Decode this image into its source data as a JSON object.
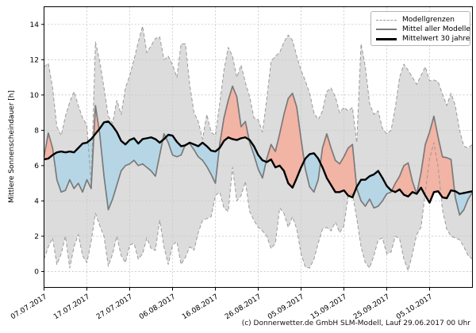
{
  "footer": "(c) Donnerwetter.de GmbH SLM-Modell, Lauf 29.06.2017 00 Uhr",
  "chart_data": {
    "type": "line",
    "title": "",
    "xlabel": "",
    "ylabel": "Mittlere Sonnenscheindauer [h]",
    "x": {
      "unit": "day",
      "start_label": "07.07.2017",
      "end_label": "15.10.2017",
      "n_points": 101,
      "tick_positions": [
        0,
        10,
        20,
        30,
        40,
        50,
        60,
        70,
        80,
        90
      ],
      "tick_labels": [
        "07.07.2017",
        "17.07.2017",
        "27.07.2017",
        "06.08.2017",
        "16.08.2017",
        "26.08.2017",
        "05.09.2017",
        "15.09.2017",
        "25.09.2017",
        "05.10.2017"
      ]
    },
    "y": {
      "ticks": [
        0,
        2,
        4,
        6,
        8,
        10,
        12,
        14
      ],
      "lim": [
        -0.9,
        15.0
      ],
      "grid": true
    },
    "legend": {
      "position": "upper right",
      "entries": [
        "Modellgrenzen",
        "Mittel aller Modelle",
        "Mittelwert 30 jahre"
      ]
    },
    "series": [
      {
        "name": "Modellgrenze oben",
        "role": "band_upper",
        "values": [
          11.6,
          11.8,
          10.4,
          8.2,
          7.7,
          8.8,
          9.6,
          10.2,
          9.4,
          8.7,
          8.3,
          4.9,
          13.0,
          11.9,
          10.4,
          8.8,
          8.4,
          9.7,
          8.9,
          10.4,
          11.1,
          12.0,
          13.0,
          13.9,
          12.4,
          12.8,
          13.2,
          13.3,
          12.0,
          12.2,
          11.7,
          11.0,
          12.9,
          12.9,
          10.6,
          9.0,
          8.5,
          7.5,
          8.9,
          7.9,
          7.7,
          9.5,
          11.4,
          12.7,
          12.2,
          11.0,
          11.7,
          10.7,
          9.9,
          8.7,
          8.6,
          7.9,
          9.8,
          11.9,
          12.2,
          12.4,
          13.0,
          13.4,
          13.1,
          12.2,
          11.4,
          10.8,
          10.1,
          9.0,
          8.6,
          9.1,
          10.2,
          10.4,
          9.9,
          9.0,
          9.3,
          9.1,
          9.3,
          7.3,
          12.9,
          11.6,
          9.5,
          8.9,
          9.1,
          8.1,
          7.8,
          8.0,
          9.3,
          11.0,
          11.75,
          11.4,
          11.0,
          10.6,
          11.1,
          11.6,
          10.8,
          10.85,
          10.75,
          10.05,
          9.4,
          10.1,
          9.4,
          8.0,
          7.1,
          7.0,
          7.2
        ]
      },
      {
        "name": "Modellgrenze unten",
        "role": "band_lower",
        "values": [
          0.7,
          1.4,
          1.9,
          0.4,
          1.0,
          2.0,
          0.2,
          1.4,
          2.1,
          0.9,
          0.5,
          1.7,
          3.3,
          2.6,
          2.0,
          0.3,
          1.0,
          2.0,
          0.9,
          0.5,
          1.5,
          1.6,
          0.7,
          1.0,
          1.9,
          1.3,
          1.2,
          2.9,
          1.4,
          0.4,
          1.5,
          1.7,
          0.4,
          0.8,
          1.4,
          1.2,
          2.2,
          2.9,
          3.0,
          3.1,
          4.3,
          4.5,
          3.6,
          3.4,
          5.9,
          4.0,
          4.3,
          5.1,
          3.4,
          2.9,
          2.5,
          2.3,
          2.0,
          1.3,
          1.6,
          3.6,
          3.3,
          2.5,
          3.1,
          2.4,
          1.0,
          0.25,
          0.2,
          0.7,
          1.6,
          2.4,
          2.5,
          2.3,
          2.8,
          2.2,
          2.6,
          4.3,
          4.4,
          3.0,
          1.4,
          0.5,
          0.2,
          0.9,
          1.8,
          1.9,
          1.0,
          1.1,
          2.0,
          1.85,
          0.7,
          0.05,
          1.0,
          2.1,
          2.5,
          4.5,
          6.4,
          7.3,
          5.9,
          3.5,
          2.4,
          2.0,
          1.9,
          1.8,
          1.4,
          0.9,
          0.7
        ]
      },
      {
        "name": "Mittel aller Modelle",
        "role": "model_mean",
        "values": [
          6.5,
          7.85,
          7.0,
          5.2,
          4.5,
          4.6,
          5.2,
          4.7,
          5.0,
          4.5,
          5.2,
          4.7,
          9.4,
          7.8,
          5.4,
          3.5,
          4.1,
          4.9,
          5.7,
          6.0,
          6.1,
          6.3,
          6.0,
          6.1,
          5.9,
          5.7,
          5.4,
          6.6,
          7.8,
          7.3,
          6.6,
          6.5,
          6.6,
          7.2,
          7.25,
          6.9,
          6.5,
          6.3,
          5.95,
          5.5,
          5.0,
          7.2,
          8.7,
          9.7,
          10.5,
          9.9,
          8.2,
          8.5,
          7.3,
          6.6,
          5.8,
          5.3,
          6.4,
          7.2,
          6.8,
          7.8,
          8.9,
          9.8,
          10.1,
          9.3,
          7.5,
          5.8,
          4.8,
          4.5,
          5.2,
          7.0,
          7.8,
          7.0,
          6.3,
          6.1,
          6.5,
          7.0,
          7.2,
          4.7,
          4.0,
          3.7,
          4.1,
          3.6,
          3.7,
          4.0,
          4.4,
          4.5,
          5.0,
          5.4,
          6.0,
          6.15,
          5.1,
          4.4,
          5.6,
          7.2,
          7.9,
          8.8,
          7.6,
          6.5,
          6.45,
          6.35,
          4.2,
          3.2,
          3.5,
          4.1,
          4.5
        ]
      },
      {
        "name": "Mittelwert 30 jahre",
        "role": "climate_mean",
        "values": [
          6.35,
          6.4,
          6.6,
          6.75,
          6.8,
          6.75,
          6.8,
          6.75,
          7.0,
          7.25,
          7.3,
          7.5,
          7.8,
          8.1,
          8.45,
          8.5,
          8.25,
          7.9,
          7.4,
          7.2,
          7.45,
          7.55,
          7.25,
          7.5,
          7.55,
          7.6,
          7.5,
          7.3,
          7.5,
          7.75,
          7.7,
          7.35,
          7.1,
          7.15,
          7.3,
          7.2,
          7.1,
          7.3,
          7.1,
          6.85,
          6.8,
          7.0,
          7.4,
          7.6,
          7.5,
          7.45,
          7.55,
          7.6,
          7.45,
          7.1,
          6.6,
          6.3,
          6.2,
          6.35,
          5.9,
          6.0,
          5.7,
          5.0,
          4.75,
          5.3,
          5.9,
          6.4,
          6.65,
          6.7,
          6.4,
          5.9,
          5.3,
          4.9,
          4.5,
          4.5,
          4.6,
          4.3,
          4.2,
          4.8,
          5.2,
          5.2,
          5.4,
          5.5,
          5.7,
          5.3,
          4.85,
          4.6,
          4.5,
          4.65,
          4.35,
          4.25,
          4.5,
          4.4,
          4.75,
          4.3,
          3.9,
          4.5,
          4.55,
          4.2,
          4.15,
          4.6,
          4.55,
          4.4,
          4.45,
          4.5,
          4.55
        ]
      }
    ],
    "colors": {
      "band_fill": "#dcdcdc",
      "band_edge": "#9a9a9a",
      "above_fill": "#f2b4a4",
      "below_fill": "#b6d6e6",
      "model_mean_line": "#7a7a7a",
      "climate_mean_line": "#000000",
      "grid": "#c9c9c9",
      "spine": "#000000",
      "tick_text": "#000000"
    }
  }
}
